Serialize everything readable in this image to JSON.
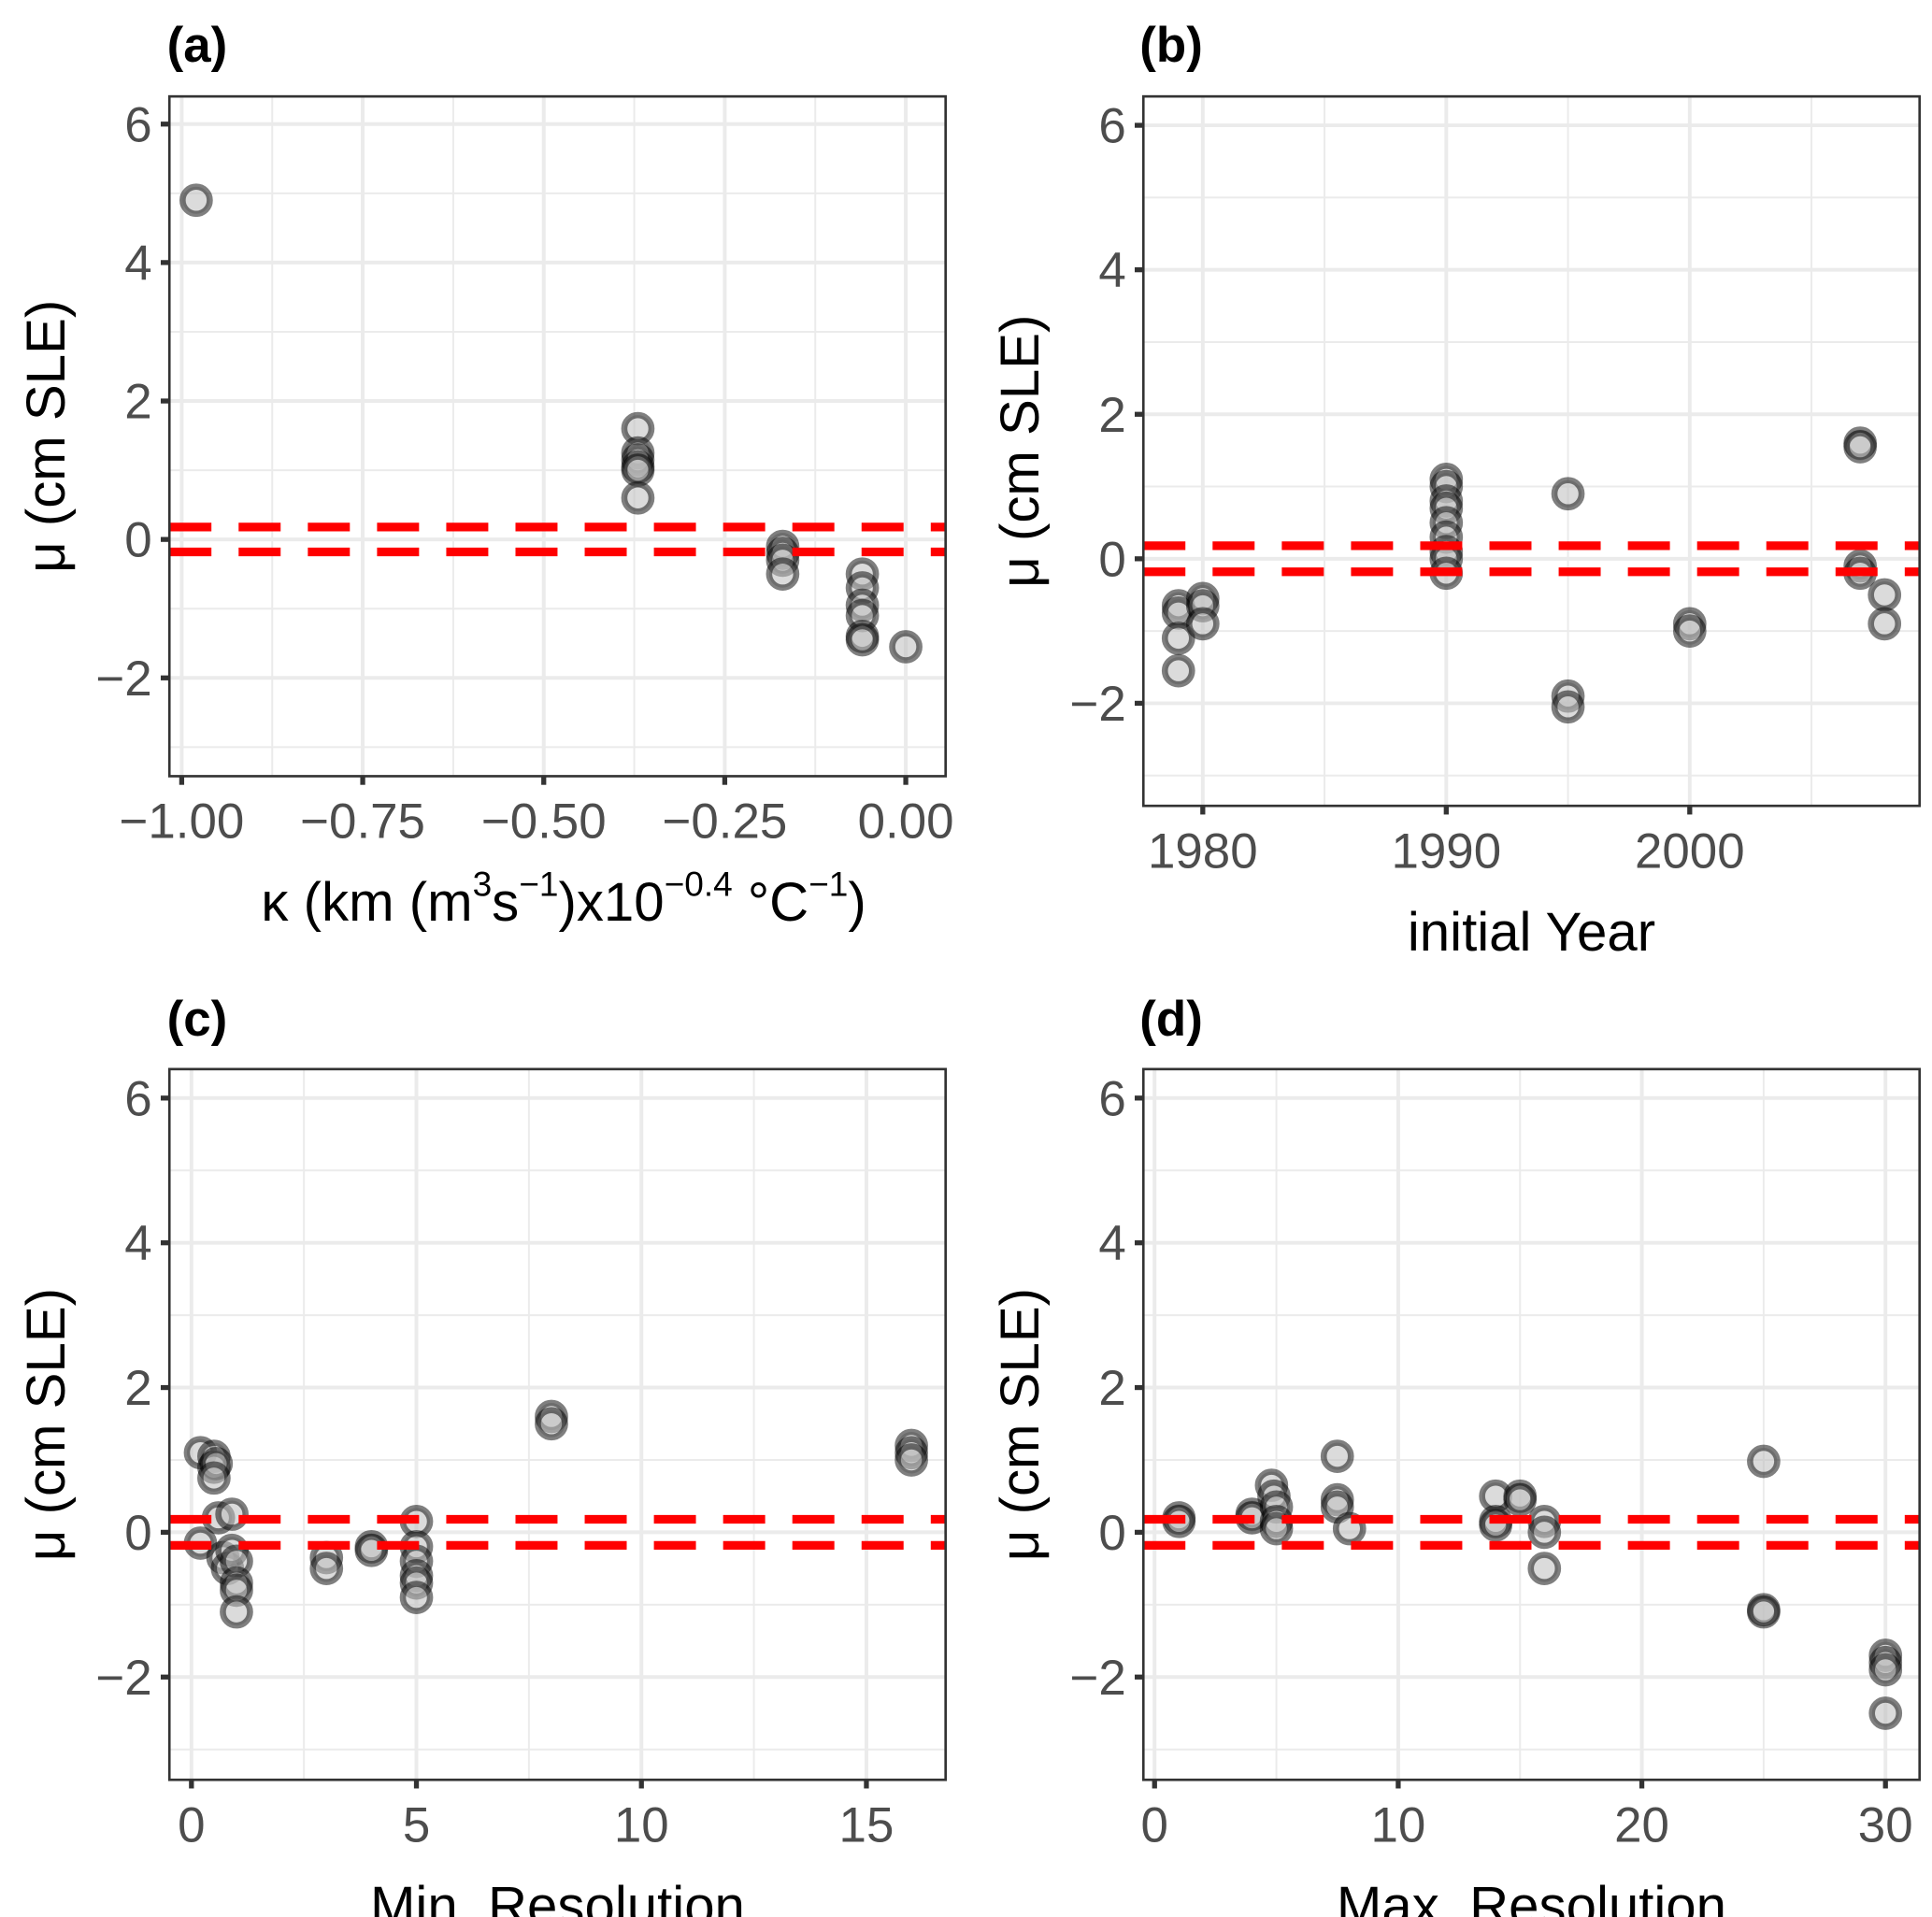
{
  "chart_data": [
    {
      "type": "scatter",
      "panel_label": "(a)",
      "xlabel": "κ (km (m³s⁻¹)x10⁻⁰·⁴ °C⁻¹)",
      "xlabel_parts": {
        "pre": "κ (km (m",
        "sup1": "3",
        "mid1": "s",
        "sup2": "−1",
        "mid2": ")x10",
        "sup3": "−0.4",
        "mid3": " °C",
        "sup4": "−1",
        "post": ")"
      },
      "ylabel": "μ (cm SLE)",
      "xlim": [
        -1.017,
        0.055
      ],
      "ylim": [
        -3.42,
        6.4
      ],
      "xticks": [
        -1.0,
        -0.75,
        -0.5,
        -0.25,
        0.0
      ],
      "xtick_labels": [
        "−1.00",
        "−0.75",
        "−0.50",
        "−0.25",
        "0.00"
      ],
      "yticks": [
        -2,
        0,
        2,
        4,
        6
      ],
      "ytick_labels": [
        "−2",
        "0",
        "2",
        "4",
        "6"
      ],
      "hlines": [
        0.18,
        -0.18
      ],
      "x": [
        -0.98,
        -0.37,
        -0.37,
        -0.37,
        -0.37,
        -0.37,
        -0.37,
        -0.17,
        -0.17,
        -0.17,
        -0.17,
        -0.06,
        -0.06,
        -0.06,
        -0.06,
        -0.06,
        -0.06,
        0.0
      ],
      "y": [
        4.9,
        1.6,
        1.25,
        1.15,
        1.05,
        1.0,
        0.6,
        -0.1,
        -0.2,
        -0.3,
        -0.5,
        -0.5,
        -0.7,
        -0.95,
        -1.1,
        -1.4,
        -1.45,
        -1.55
      ]
    },
    {
      "type": "scatter",
      "panel_label": "(b)",
      "xlabel": "initial Year",
      "ylabel": "μ (cm SLE)",
      "xlim": [
        1977.56,
        2009.44
      ],
      "ylim": [
        -3.42,
        6.4
      ],
      "xticks": [
        1980,
        1990,
        2000
      ],
      "xtick_labels": [
        "1980",
        "1990",
        "2000"
      ],
      "yticks": [
        -2,
        0,
        2,
        4,
        6
      ],
      "ytick_labels": [
        "−2",
        "0",
        "2",
        "4",
        "6"
      ],
      "hlines": [
        0.18,
        -0.18
      ],
      "x": [
        1979,
        1979,
        1979,
        1979,
        1980,
        1980,
        1980,
        1990,
        1990,
        1990,
        1990,
        1990,
        1990,
        1990,
        1990,
        1990,
        1995,
        1995,
        1995,
        2000,
        2000,
        2007,
        2007,
        2007,
        2007,
        2008,
        2008
      ],
      "y": [
        -0.65,
        -0.75,
        -1.1,
        -1.55,
        -0.55,
        -0.65,
        -0.9,
        1.1,
        1.0,
        0.8,
        0.7,
        0.5,
        0.3,
        0.1,
        0.0,
        -0.2,
        0.9,
        -1.9,
        -2.05,
        -0.9,
        -1.0,
        1.6,
        1.55,
        -0.1,
        -0.2,
        -0.5,
        -0.9
      ]
    },
    {
      "type": "scatter",
      "panel_label": "(c)",
      "xlabel": "Min. Resolution",
      "ylabel": "μ (cm SLE)",
      "xlim": [
        -0.49,
        16.76
      ],
      "ylim": [
        -3.42,
        6.4
      ],
      "xticks": [
        0,
        5,
        10,
        15
      ],
      "xtick_labels": [
        "0",
        "5",
        "10",
        "15"
      ],
      "yticks": [
        -2,
        0,
        2,
        4,
        6
      ],
      "ytick_labels": [
        "−2",
        "0",
        "2",
        "4",
        "6"
      ],
      "hlines": [
        0.18,
        -0.18
      ],
      "x": [
        0.2,
        0.2,
        0.5,
        0.5,
        0.55,
        0.5,
        0.6,
        0.7,
        0.8,
        0.9,
        0.9,
        1.0,
        1.0,
        1.0,
        1.0,
        3,
        3,
        4,
        4,
        5,
        5,
        5,
        5,
        5,
        5,
        8,
        8,
        16,
        16,
        16
      ],
      "y": [
        1.1,
        -0.15,
        1.05,
        0.9,
        0.95,
        0.75,
        0.2,
        -0.35,
        -0.5,
        0.25,
        -0.25,
        -0.4,
        -0.7,
        -0.8,
        -1.1,
        -0.35,
        -0.5,
        -0.2,
        -0.25,
        0.15,
        -0.2,
        -0.4,
        -0.6,
        -0.7,
        -0.9,
        1.6,
        1.5,
        1.2,
        1.1,
        1.0
      ]
    },
    {
      "type": "scatter",
      "panel_label": "(d)",
      "xlabel": "Max. Resolution",
      "ylabel": "μ (cm SLE)",
      "xlim": [
        -0.46,
        31.4
      ],
      "ylim": [
        -3.42,
        6.4
      ],
      "xticks": [
        0,
        10,
        20,
        30
      ],
      "xtick_labels": [
        "0",
        "10",
        "20",
        "30"
      ],
      "yticks": [
        -2,
        0,
        2,
        4,
        6
      ],
      "ytick_labels": [
        "−2",
        "0",
        "2",
        "4",
        "6"
      ],
      "hlines": [
        0.18,
        -0.18
      ],
      "x": [
        1,
        1,
        4,
        4,
        4.8,
        4.9,
        5,
        5,
        5,
        7.5,
        7.5,
        7.5,
        8,
        14,
        14,
        14,
        15,
        15,
        16,
        16,
        16,
        25,
        25,
        25,
        30,
        30,
        30,
        30
      ],
      "y": [
        0.2,
        0.15,
        0.25,
        0.2,
        0.65,
        0.5,
        0.35,
        0.15,
        0.05,
        1.05,
        0.45,
        0.35,
        0.05,
        0.5,
        0.15,
        0.1,
        0.5,
        0.45,
        0.15,
        0.0,
        -0.5,
        0.98,
        -1.07,
        -1.1,
        -1.7,
        -1.8,
        -1.9,
        -2.5
      ]
    }
  ]
}
